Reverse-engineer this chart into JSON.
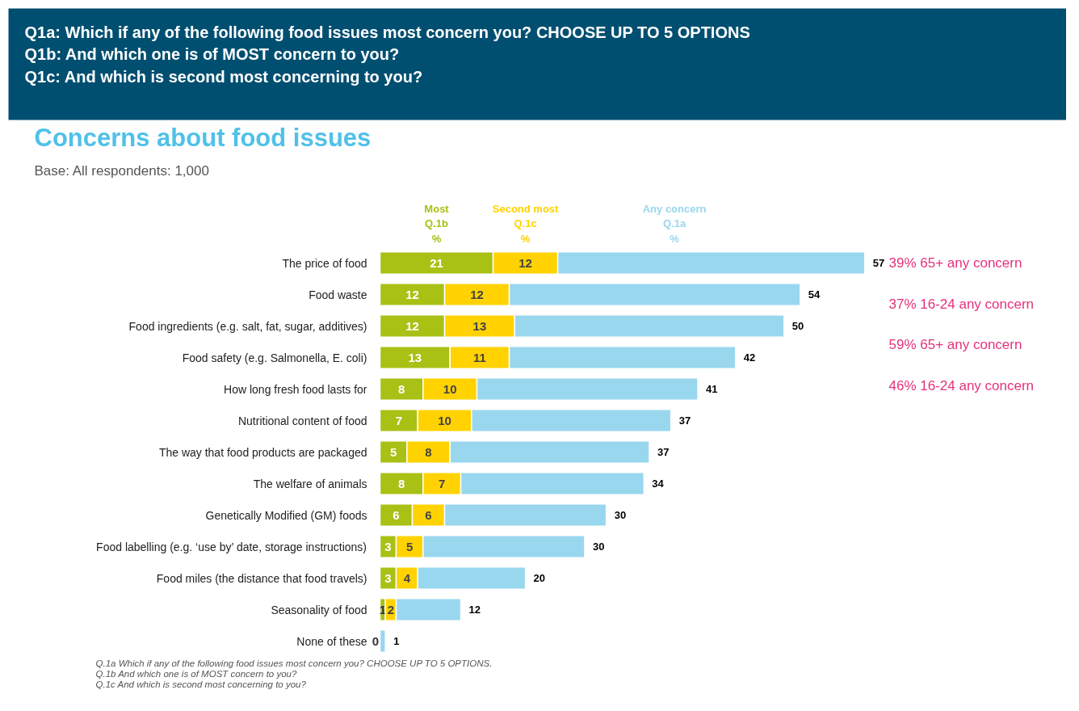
{
  "chart_data": {
    "type": "bar",
    "orientation": "horizontal",
    "stacked": true,
    "legend": "top",
    "title": "Q1a: Which if any of the following food issues most concern you? CHOOSE UP TO 5 OPTIONS\nQ1b: And which one is of MOST concern to you?\nQ1c: And which is second most concerning to you?",
    "subtitle": "Concerns about food issues",
    "categories": [
      "The price of food",
      "Food waste",
      "Food ingredients (e.g. salt, fat, sugar, additives)",
      "Food safety (e.g. Salmonella, E. coli)",
      "How long fresh food lasts for",
      "Nutritional content of food",
      "The way that food products are packaged",
      "The welfare of animals",
      "Genetically Modified (GM) foods",
      "Food labelling (e.g. ‘use by’ date, storage instructions)",
      "Food miles (the distance that food travels)",
      "Seasonality of food",
      "None of these"
    ],
    "series": [
      {
        "name": "Most\nQ.1b\n%",
        "color": "#a9c015",
        "values": [
          21,
          12,
          12,
          13,
          8,
          7,
          5,
          8,
          6,
          3,
          3,
          1,
          0
        ],
        "value_labels": [
          "21",
          "12",
          "12",
          "13",
          "8",
          "7",
          "5",
          "8",
          "6",
          "3",
          "3",
          "1",
          null
        ]
      },
      {
        "name": "Second most\nQ.1c\n%",
        "color": "#ffd200",
        "values": [
          12,
          12,
          13,
          11,
          10,
          10,
          8,
          7,
          6,
          5,
          4,
          2,
          0
        ],
        "value_labels": [
          "12",
          "12",
          "13",
          "11",
          "10",
          "10",
          "8",
          "7",
          "6",
          "5",
          "4",
          "2",
          "0"
        ]
      },
      {
        "name": "Any concern\nQ.1a\n%",
        "color": "#99d7ef",
        "values": [
          57,
          54,
          50,
          42,
          41,
          37,
          37,
          34,
          30,
          30,
          20,
          12,
          1
        ],
        "value_labels": [
          "57",
          "54",
          "50",
          "42",
          "41",
          "37",
          "37",
          "34",
          "30",
          "30",
          "20",
          "12",
          "1"
        ]
      }
    ],
    "annotations": [
      "Base: All respondents: 1,000",
      "39% 65+ any concern",
      "37% 16-24 any concern",
      "59% 65+ any concern",
      "46% 16-24 any concern",
      "Q.1a  Which if any of the following food issues most concern you? CHOOSE UP TO 5 OPTIONS.",
      "Q.1b And which one is of MOST concern to you?",
      "Q.1c And which is second most concerning to you?"
    ]
  }
}
